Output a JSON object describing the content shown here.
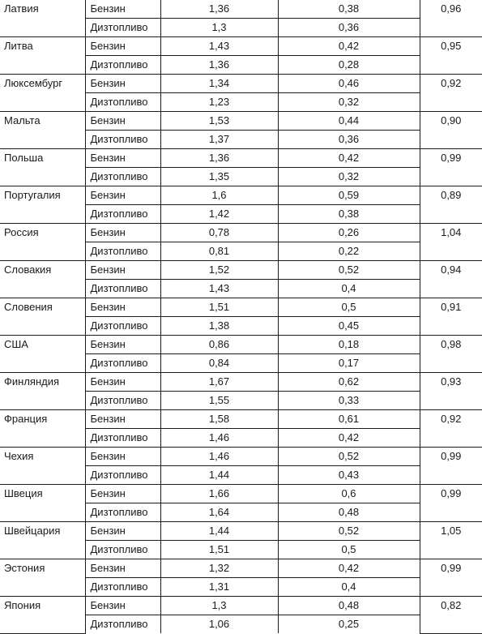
{
  "rows": [
    {
      "country": "Латвия",
      "fuel1": "Бензин",
      "price1": "1,36",
      "tax1": "0,38",
      "fuel2": "Дизтопливо",
      "price2": "1,3",
      "tax2": "0,36",
      "ratio": "0,96"
    },
    {
      "country": "Литва",
      "fuel1": "Бензин",
      "price1": "1,43",
      "tax1": "0,42",
      "fuel2": "Дизтопливо",
      "price2": "1,36",
      "tax2": "0,28",
      "ratio": "0,95"
    },
    {
      "country": "Люксембург",
      "fuel1": "Бензин",
      "price1": "1,34",
      "tax1": "0,46",
      "fuel2": "Дизтопливо",
      "price2": "1,23",
      "tax2": "0,32",
      "ratio": "0,92"
    },
    {
      "country": "Мальта",
      "fuel1": "Бензин",
      "price1": "1,53",
      "tax1": "0,44",
      "fuel2": "Дизтопливо",
      "price2": "1,37",
      "tax2": "0,36",
      "ratio": "0,90"
    },
    {
      "country": "Польша",
      "fuel1": "Бензин",
      "price1": "1,36",
      "tax1": "0,42",
      "fuel2": "Дизтопливо",
      "price2": "1,35",
      "tax2": "0,32",
      "ratio": "0,99"
    },
    {
      "country": "Португалия",
      "fuel1": "Бензин",
      "price1": "1,6",
      "tax1": "0,59",
      "fuel2": "Дизтопливо",
      "price2": "1,42",
      "tax2": "0,38",
      "ratio": "0,89"
    },
    {
      "country": "Россия",
      "fuel1": "Бензин",
      "price1": "0,78",
      "tax1": "0,26",
      "fuel2": "Дизтопливо",
      "price2": "0,81",
      "tax2": "0,22",
      "ratio": "1,04"
    },
    {
      "country": "Словакия",
      "fuel1": "Бензин",
      "price1": "1,52",
      "tax1": "0,52",
      "fuel2": "Дизтопливо",
      "price2": "1,43",
      "tax2": "0,4",
      "ratio": "0,94"
    },
    {
      "country": "Словения",
      "fuel1": "Бензин",
      "price1": "1,51",
      "tax1": "0,5",
      "fuel2": "Дизтопливо",
      "price2": "1,38",
      "tax2": "0,45",
      "ratio": "0,91"
    },
    {
      "country": "США",
      "fuel1": "Бензин",
      "price1": "0,86",
      "tax1": "0,18",
      "fuel2": "Дизтопливо",
      "price2": "0,84",
      "tax2": "0,17",
      "ratio": "0,98"
    },
    {
      "country": "Финляндия",
      "fuel1": "Бензин",
      "price1": "1,67",
      "tax1": "0,62",
      "fuel2": "Дизтопливо",
      "price2": "1,55",
      "tax2": "0,33",
      "ratio": "0,93"
    },
    {
      "country": "Франция",
      "fuel1": "Бензин",
      "price1": "1,58",
      "tax1": "0,61",
      "fuel2": "Дизтопливо",
      "price2": "1,46",
      "tax2": "0,42",
      "ratio": "0,92"
    },
    {
      "country": "Чехия",
      "fuel1": "Бензин",
      "price1": "1,46",
      "tax1": "0,52",
      "fuel2": "Дизтопливо",
      "price2": "1,44",
      "tax2": "0,43",
      "ratio": "0,99"
    },
    {
      "country": "Швеция",
      "fuel1": "Бензин",
      "price1": "1,66",
      "tax1": "0,6",
      "fuel2": "Дизтопливо",
      "price2": "1,64",
      "tax2": "0,48",
      "ratio": "0,99"
    },
    {
      "country": "Швейцария",
      "fuel1": "Бензин",
      "price1": "1,44",
      "tax1": "0,52",
      "fuel2": "Дизтопливо",
      "price2": "1,51",
      "tax2": "0,5",
      "ratio": "1,05"
    },
    {
      "country": "Эстония",
      "fuel1": "Бензин",
      "price1": "1,32",
      "tax1": "0,42",
      "fuel2": "Дизтопливо",
      "price2": "1,31",
      "tax2": "0,4",
      "ratio": "0,99"
    },
    {
      "country": "Япония",
      "fuel1": "Бензин",
      "price1": "1,3",
      "tax1": "0,48",
      "fuel2": "Дизтопливо",
      "price2": "1,06",
      "tax2": "0,25",
      "ratio": "0,82"
    }
  ]
}
